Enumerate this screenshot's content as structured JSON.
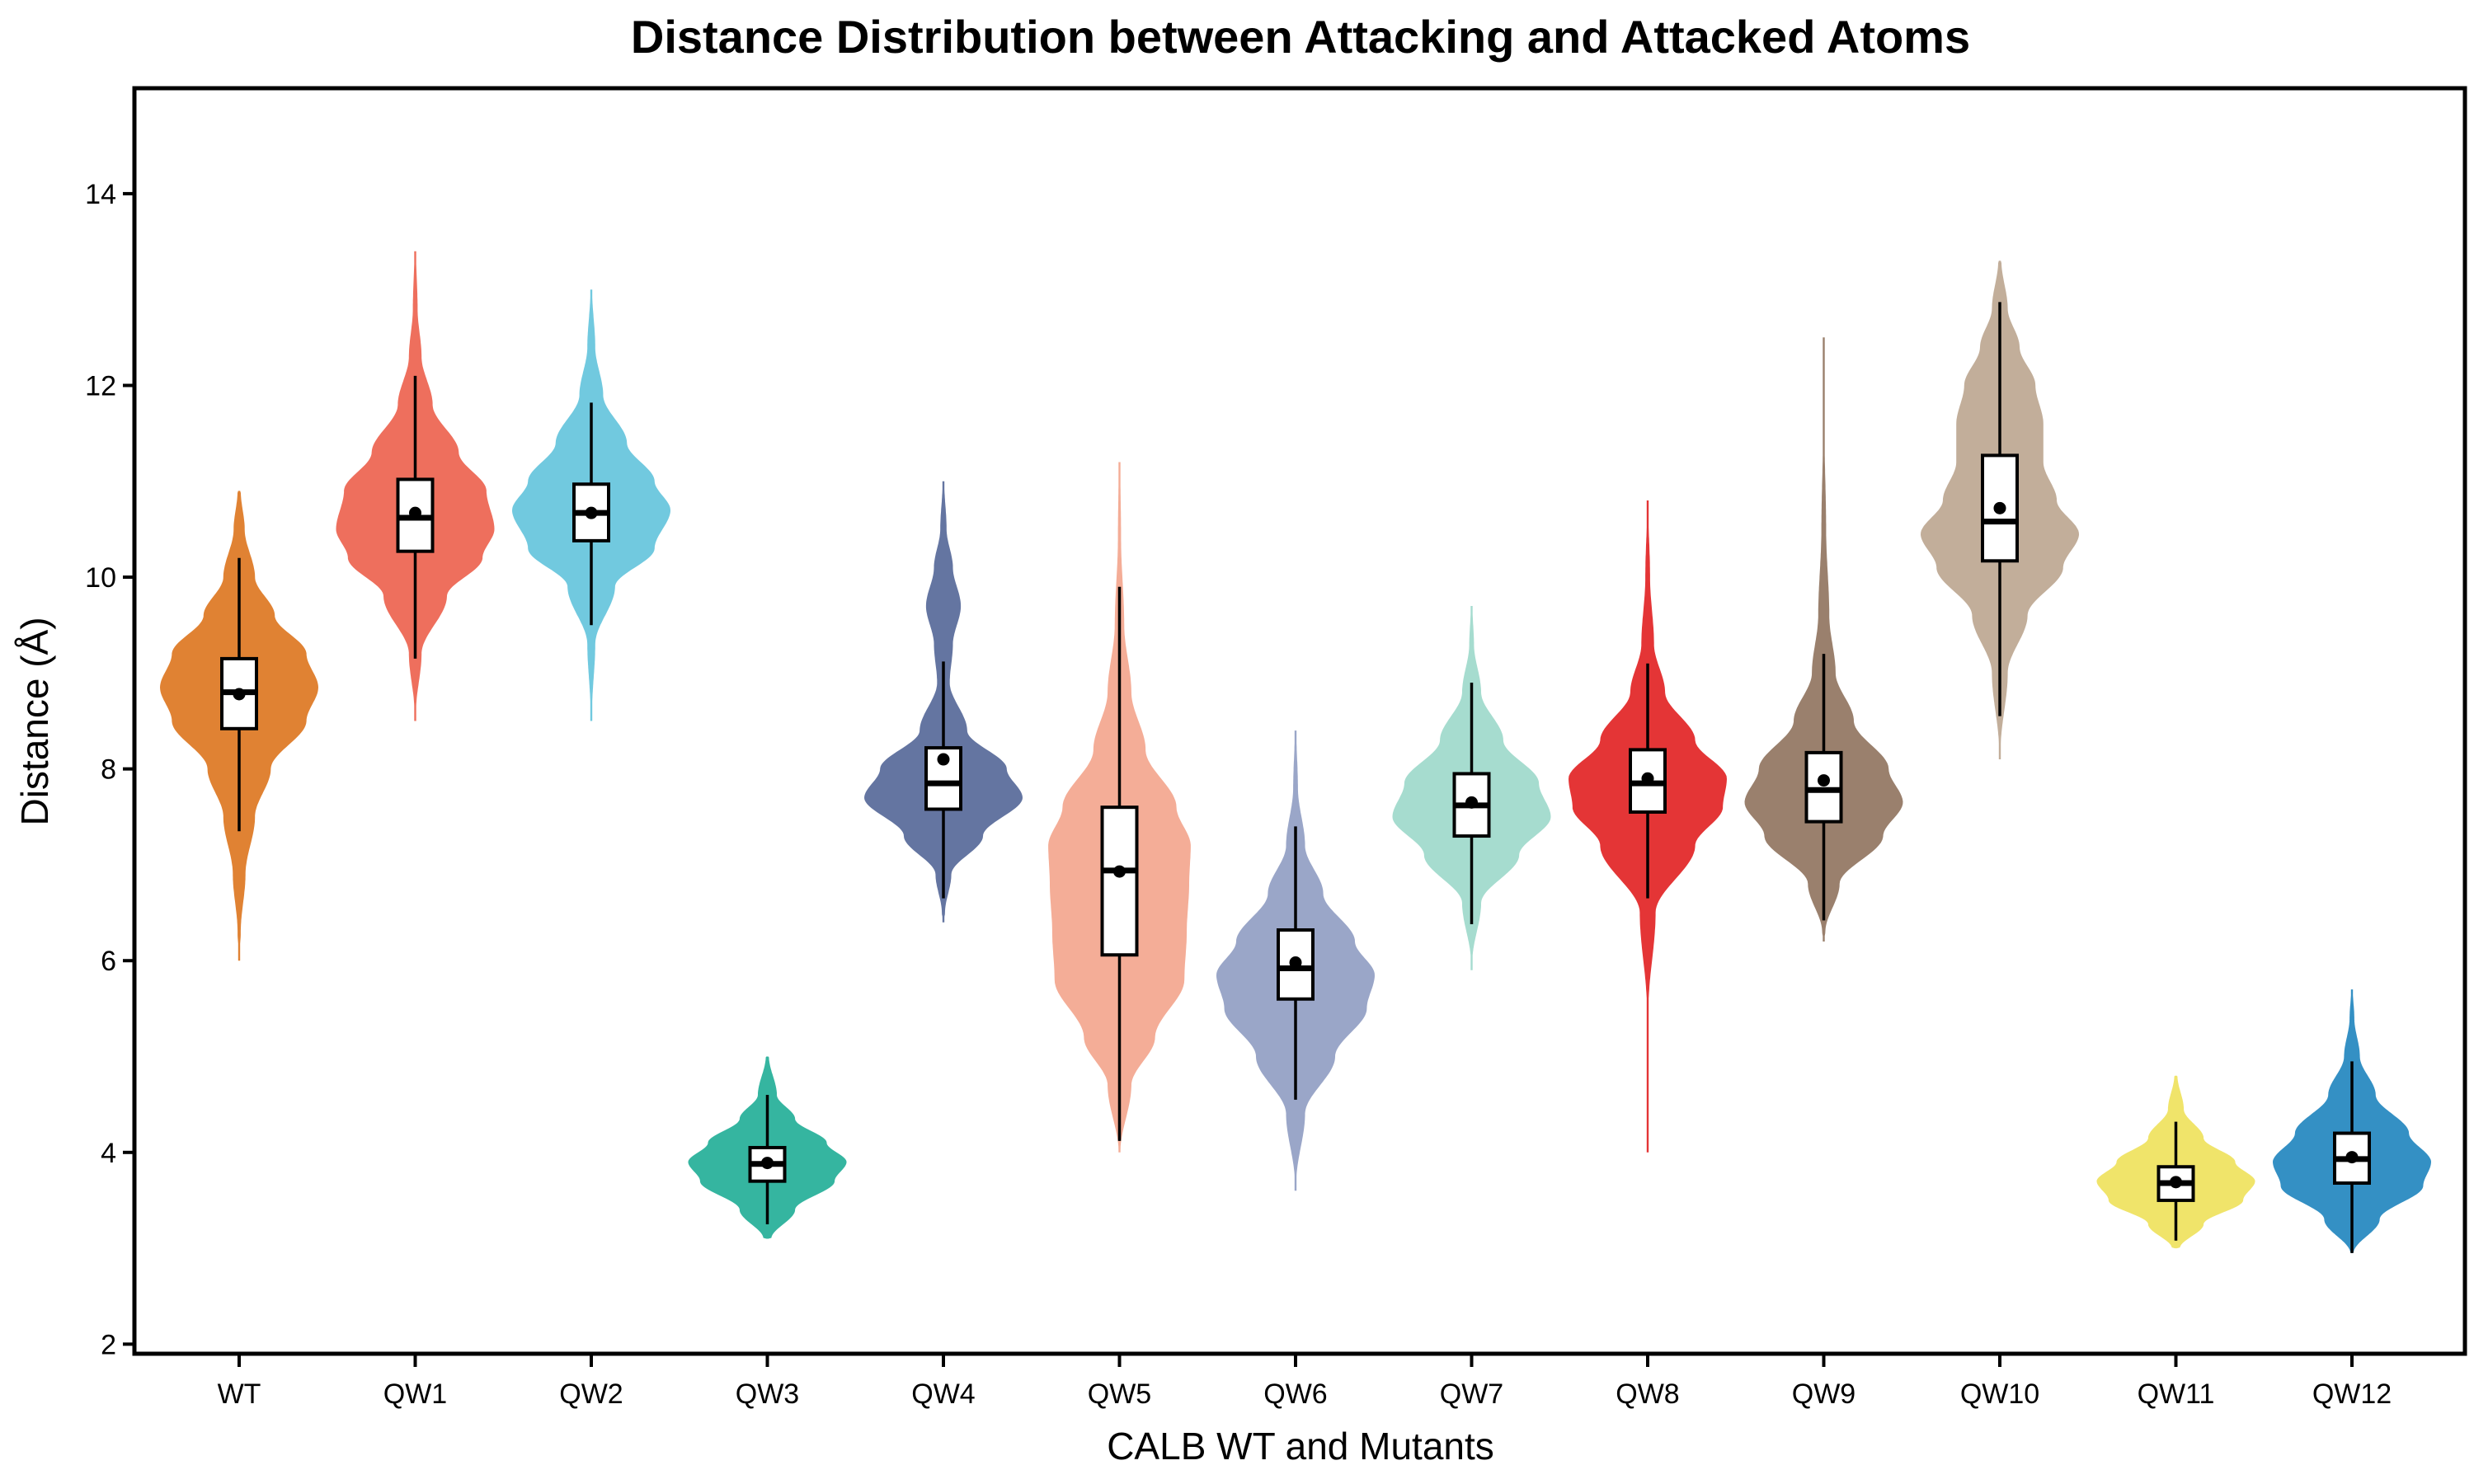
{
  "chart_data": {
    "type": "violin",
    "title": "Distance Distribution between Attacking and Attacked Atoms",
    "xlabel": "CALB WT and Mutants",
    "ylabel": "Distance (Å)",
    "ylim": [
      1.9,
      15.1
    ],
    "yticks": [
      2,
      4,
      6,
      8,
      10,
      12,
      14
    ],
    "grid": false,
    "legend": "none",
    "categories": [
      "WT",
      "QW1",
      "QW2",
      "QW3",
      "QW4",
      "QW5",
      "QW6",
      "QW7",
      "QW8",
      "QW9",
      "QW10",
      "QW11",
      "QW12"
    ],
    "series": [
      {
        "category": "WT",
        "color": "#E08233",
        "tail_min": 6.0,
        "tail_max": 10.9,
        "whisker_low": 7.35,
        "q1": 8.42,
        "median": 8.8,
        "q3": 9.15,
        "whisker_high": 10.2,
        "mean": 8.78,
        "density": [
          [
            6.3,
            0.02
          ],
          [
            6.9,
            0.08
          ],
          [
            7.5,
            0.2
          ],
          [
            8.0,
            0.4
          ],
          [
            8.5,
            0.85
          ],
          [
            8.85,
            1.0
          ],
          [
            9.2,
            0.85
          ],
          [
            9.6,
            0.45
          ],
          [
            10.0,
            0.2
          ],
          [
            10.5,
            0.07
          ],
          [
            10.9,
            0.02
          ]
        ]
      },
      {
        "category": "QW1",
        "color": "#EE6F5D",
        "tail_min": 8.5,
        "tail_max": 13.4,
        "whisker_low": 9.15,
        "q1": 10.27,
        "median": 10.62,
        "q3": 11.02,
        "whisker_high": 12.1,
        "mean": 10.67,
        "density": [
          [
            8.6,
            0.01
          ],
          [
            9.2,
            0.08
          ],
          [
            9.8,
            0.4
          ],
          [
            10.2,
            0.85
          ],
          [
            10.5,
            1.0
          ],
          [
            10.9,
            0.9
          ],
          [
            11.3,
            0.55
          ],
          [
            11.8,
            0.22
          ],
          [
            12.3,
            0.08
          ],
          [
            12.8,
            0.03
          ],
          [
            13.4,
            0.01
          ]
        ]
      },
      {
        "category": "QW2",
        "color": "#71C9DF",
        "tail_min": 8.5,
        "tail_max": 13.0,
        "whisker_low": 9.5,
        "q1": 10.38,
        "median": 10.67,
        "q3": 10.97,
        "whisker_high": 11.82,
        "mean": 10.67,
        "density": [
          [
            8.6,
            0.01
          ],
          [
            9.3,
            0.05
          ],
          [
            9.9,
            0.3
          ],
          [
            10.3,
            0.8
          ],
          [
            10.7,
            1.0
          ],
          [
            11.0,
            0.8
          ],
          [
            11.4,
            0.45
          ],
          [
            11.9,
            0.15
          ],
          [
            12.4,
            0.05
          ],
          [
            13.0,
            0.01
          ]
        ]
      },
      {
        "category": "QW3",
        "color": "#35B5A0",
        "tail_min": 3.1,
        "tail_max": 5.0,
        "whisker_low": 3.25,
        "q1": 3.7,
        "median": 3.88,
        "q3": 4.05,
        "whisker_high": 4.6,
        "mean": 3.89,
        "density": [
          [
            3.1,
            0.05
          ],
          [
            3.4,
            0.35
          ],
          [
            3.7,
            0.85
          ],
          [
            3.9,
            1.0
          ],
          [
            4.1,
            0.75
          ],
          [
            4.35,
            0.35
          ],
          [
            4.6,
            0.12
          ],
          [
            5.0,
            0.02
          ]
        ]
      },
      {
        "category": "QW4",
        "color": "#6475A1",
        "tail_min": 6.4,
        "tail_max": 11.0,
        "whisker_low": 6.65,
        "q1": 7.58,
        "median": 7.85,
        "q3": 8.22,
        "whisker_high": 9.12,
        "mean": 8.1,
        "density": [
          [
            6.5,
            0.02
          ],
          [
            6.9,
            0.1
          ],
          [
            7.3,
            0.5
          ],
          [
            7.7,
            1.0
          ],
          [
            8.0,
            0.8
          ],
          [
            8.4,
            0.3
          ],
          [
            8.9,
            0.08
          ],
          [
            9.3,
            0.12
          ],
          [
            9.7,
            0.22
          ],
          [
            10.1,
            0.12
          ],
          [
            10.5,
            0.04
          ],
          [
            11.0,
            0.01
          ]
        ]
      },
      {
        "category": "QW5",
        "color": "#F4AD97",
        "tail_min": 4.0,
        "tail_max": 11.2,
        "whisker_low": 4.12,
        "q1": 6.06,
        "median": 6.94,
        "q3": 7.6,
        "whisker_high": 9.9,
        "mean": 6.93,
        "density": [
          [
            4.0,
            0.01
          ],
          [
            4.7,
            0.15
          ],
          [
            5.2,
            0.45
          ],
          [
            5.8,
            0.82
          ],
          [
            6.3,
            0.85
          ],
          [
            6.8,
            0.88
          ],
          [
            7.2,
            0.9
          ],
          [
            7.6,
            0.72
          ],
          [
            8.2,
            0.33
          ],
          [
            8.8,
            0.15
          ],
          [
            9.5,
            0.06
          ],
          [
            10.4,
            0.02
          ],
          [
            11.2,
            0.01
          ]
        ]
      },
      {
        "category": "QW6",
        "color": "#9AA6C8",
        "tail_min": 3.6,
        "tail_max": 8.4,
        "whisker_low": 4.55,
        "q1": 5.6,
        "median": 5.92,
        "q3": 6.32,
        "whisker_high": 7.4,
        "mean": 5.98,
        "density": [
          [
            3.7,
            0.01
          ],
          [
            4.4,
            0.12
          ],
          [
            5.0,
            0.5
          ],
          [
            5.5,
            0.9
          ],
          [
            5.85,
            1.0
          ],
          [
            6.2,
            0.75
          ],
          [
            6.7,
            0.35
          ],
          [
            7.2,
            0.12
          ],
          [
            7.8,
            0.03
          ],
          [
            8.4,
            0.01
          ]
        ]
      },
      {
        "category": "QW7",
        "color": "#A6DCCF",
        "tail_min": 5.9,
        "tail_max": 9.7,
        "whisker_low": 6.38,
        "q1": 7.3,
        "median": 7.62,
        "q3": 7.95,
        "whisker_high": 8.9,
        "mean": 7.65,
        "density": [
          [
            6.0,
            0.01
          ],
          [
            6.6,
            0.12
          ],
          [
            7.1,
            0.6
          ],
          [
            7.5,
            1.0
          ],
          [
            7.85,
            0.85
          ],
          [
            8.3,
            0.4
          ],
          [
            8.8,
            0.12
          ],
          [
            9.3,
            0.03
          ],
          [
            9.7,
            0.01
          ]
        ]
      },
      {
        "category": "QW8",
        "color": "#E43536",
        "tail_min": 4.0,
        "tail_max": 10.8,
        "whisker_low": 6.65,
        "q1": 7.55,
        "median": 7.85,
        "q3": 8.2,
        "whisker_high": 9.1,
        "mean": 7.9,
        "density": [
          [
            4.0,
            0.005
          ],
          [
            5.5,
            0.01
          ],
          [
            6.5,
            0.1
          ],
          [
            7.2,
            0.6
          ],
          [
            7.6,
            0.95
          ],
          [
            7.9,
            1.0
          ],
          [
            8.3,
            0.6
          ],
          [
            8.8,
            0.22
          ],
          [
            9.3,
            0.08
          ],
          [
            10.0,
            0.03
          ],
          [
            10.8,
            0.005
          ]
        ]
      },
      {
        "category": "QW9",
        "color": "#9A806D",
        "tail_min": 6.2,
        "tail_max": 12.5,
        "whisker_low": 6.42,
        "q1": 7.45,
        "median": 7.78,
        "q3": 8.17,
        "whisker_high": 9.2,
        "mean": 7.88,
        "density": [
          [
            6.3,
            0.02
          ],
          [
            6.8,
            0.2
          ],
          [
            7.3,
            0.75
          ],
          [
            7.65,
            1.0
          ],
          [
            8.0,
            0.82
          ],
          [
            8.5,
            0.38
          ],
          [
            9.0,
            0.15
          ],
          [
            9.6,
            0.07
          ],
          [
            10.5,
            0.03
          ],
          [
            11.5,
            0.01
          ],
          [
            12.5,
            0.005
          ]
        ]
      },
      {
        "category": "QW10",
        "color": "#C2AE9A",
        "tail_min": 8.1,
        "tail_max": 13.3,
        "whisker_low": 8.55,
        "q1": 10.17,
        "median": 10.58,
        "q3": 11.27,
        "whisker_high": 12.87,
        "mean": 10.72,
        "density": [
          [
            8.2,
            0.01
          ],
          [
            9.0,
            0.1
          ],
          [
            9.6,
            0.35
          ],
          [
            10.1,
            0.8
          ],
          [
            10.45,
            1.0
          ],
          [
            10.8,
            0.72
          ],
          [
            11.2,
            0.55
          ],
          [
            11.6,
            0.55
          ],
          [
            12.0,
            0.45
          ],
          [
            12.4,
            0.25
          ],
          [
            12.8,
            0.1
          ],
          [
            13.3,
            0.02
          ]
        ]
      },
      {
        "category": "QW11",
        "color": "#F0E46A",
        "tail_min": 3.0,
        "tail_max": 4.8,
        "whisker_low": 3.08,
        "q1": 3.5,
        "median": 3.68,
        "q3": 3.85,
        "whisker_high": 4.32,
        "mean": 3.69,
        "density": [
          [
            3.0,
            0.05
          ],
          [
            3.25,
            0.35
          ],
          [
            3.5,
            0.85
          ],
          [
            3.7,
            1.0
          ],
          [
            3.9,
            0.75
          ],
          [
            4.15,
            0.35
          ],
          [
            4.45,
            0.1
          ],
          [
            4.8,
            0.02
          ]
        ]
      },
      {
        "category": "QW12",
        "color": "#3490C4",
        "tail_min": 2.95,
        "tail_max": 5.7,
        "whisker_low": 2.95,
        "q1": 3.68,
        "median": 3.93,
        "q3": 4.2,
        "whisker_high": 4.95,
        "mean": 3.95,
        "density": [
          [
            2.95,
            0.02
          ],
          [
            3.3,
            0.35
          ],
          [
            3.65,
            0.9
          ],
          [
            3.9,
            1.0
          ],
          [
            4.2,
            0.72
          ],
          [
            4.6,
            0.3
          ],
          [
            5.0,
            0.1
          ],
          [
            5.4,
            0.03
          ],
          [
            5.7,
            0.01
          ]
        ]
      }
    ]
  }
}
